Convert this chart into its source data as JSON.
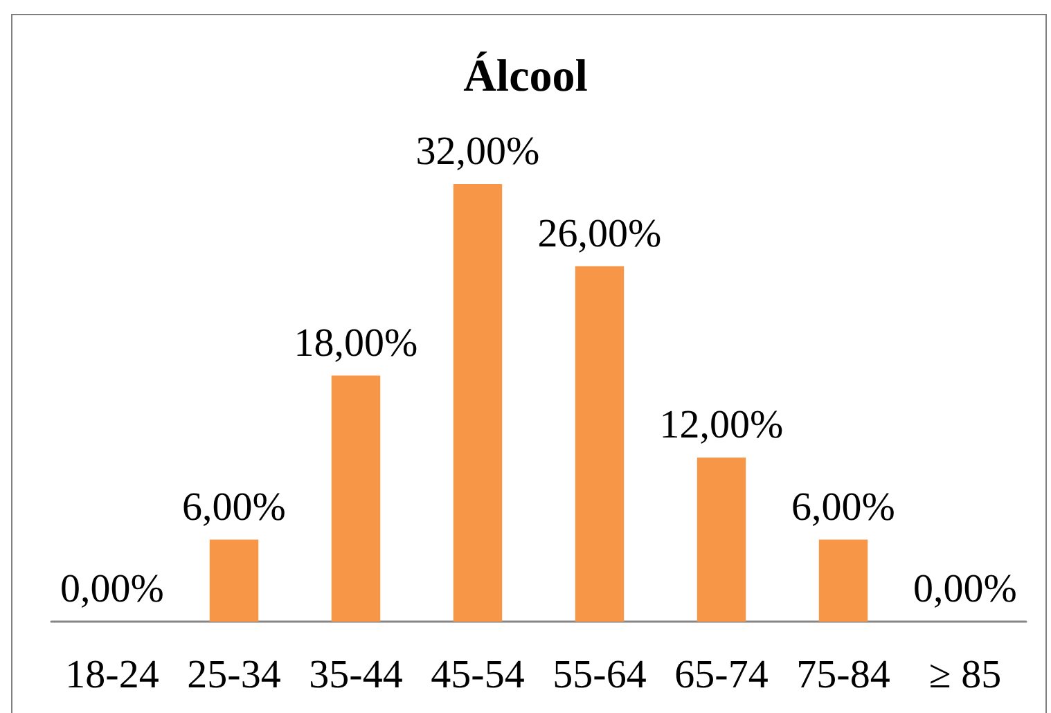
{
  "chart_data": {
    "type": "bar",
    "title": "Álcool",
    "categories": [
      "18-24",
      "25-34",
      "35-44",
      "45-54",
      "55-64",
      "65-74",
      "75-84",
      "≥ 85"
    ],
    "values": [
      0,
      6,
      18,
      32,
      26,
      12,
      6,
      0
    ],
    "value_labels": [
      "0,00%",
      "6,00%",
      "18,00%",
      "32,00%",
      "26,00%",
      "12,00%",
      "6,00%",
      "0,00%"
    ],
    "color": "#f79646"
  }
}
